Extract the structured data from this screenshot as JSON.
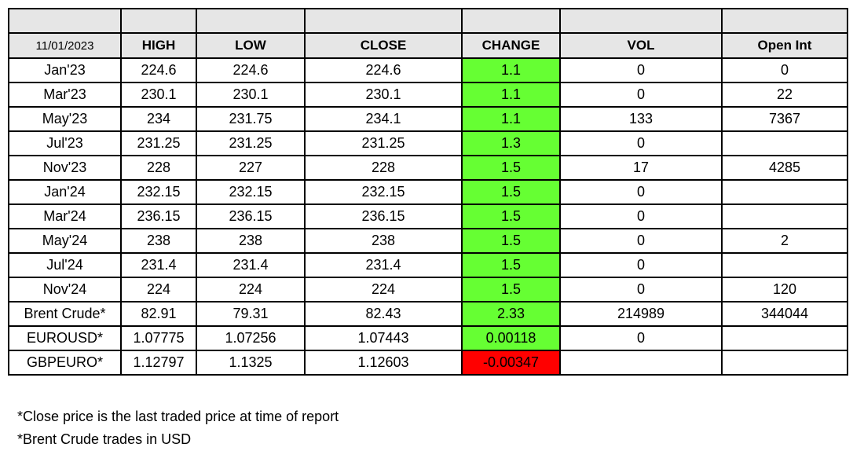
{
  "header": {
    "date": "11/01/2023",
    "columns": [
      "HIGH",
      "LOW",
      "CLOSE",
      "CHANGE",
      "VOL",
      "Open Int"
    ]
  },
  "colors": {
    "positive_change": "#66ff33",
    "negative_change": "#ff0000",
    "header_fill": "#e6e6e6"
  },
  "rows": [
    {
      "name": "Jan'23",
      "high": "224.6",
      "low": "224.6",
      "close": "224.6",
      "change": "1.1",
      "vol": "0",
      "oi": "0",
      "neg": false
    },
    {
      "name": "Mar'23",
      "high": "230.1",
      "low": "230.1",
      "close": "230.1",
      "change": "1.1",
      "vol": "0",
      "oi": "22",
      "neg": false
    },
    {
      "name": "May'23",
      "high": "234",
      "low": "231.75",
      "close": "234.1",
      "change": "1.1",
      "vol": "133",
      "oi": "7367",
      "neg": false
    },
    {
      "name": "Jul'23",
      "high": "231.25",
      "low": "231.25",
      "close": "231.25",
      "change": "1.3",
      "vol": "0",
      "oi": "",
      "neg": false
    },
    {
      "name": "Nov'23",
      "high": "228",
      "low": "227",
      "close": "228",
      "change": "1.5",
      "vol": "17",
      "oi": "4285",
      "neg": false
    },
    {
      "name": "Jan'24",
      "high": "232.15",
      "low": "232.15",
      "close": "232.15",
      "change": "1.5",
      "vol": "0",
      "oi": "",
      "neg": false
    },
    {
      "name": "Mar'24",
      "high": "236.15",
      "low": "236.15",
      "close": "236.15",
      "change": "1.5",
      "vol": "0",
      "oi": "",
      "neg": false
    },
    {
      "name": "May'24",
      "high": "238",
      "low": "238",
      "close": "238",
      "change": "1.5",
      "vol": "0",
      "oi": "2",
      "neg": false
    },
    {
      "name": "Jul'24",
      "high": "231.4",
      "low": "231.4",
      "close": "231.4",
      "change": "1.5",
      "vol": "0",
      "oi": "",
      "neg": false
    },
    {
      "name": "Nov'24",
      "high": "224",
      "low": "224",
      "close": "224",
      "change": "1.5",
      "vol": "0",
      "oi": "120",
      "neg": false
    },
    {
      "name": "Brent Crude*",
      "high": "82.91",
      "low": "79.31",
      "close": "82.43",
      "change": "2.33",
      "vol": "214989",
      "oi": "344044",
      "neg": false
    },
    {
      "name": "EUROUSD*",
      "high": "1.07775",
      "low": "1.07256",
      "close": "1.07443",
      "change": "0.00118",
      "vol": "0",
      "oi": "",
      "neg": false
    },
    {
      "name": "GBPEURO*",
      "high": "1.12797",
      "low": "1.1325",
      "close": "1.12603",
      "change": "-0.00347",
      "vol": "",
      "oi": "",
      "neg": true
    }
  ],
  "notes": [
    "*Close price is the last traded price at time of report",
    "*Brent Crude trades in USD"
  ]
}
